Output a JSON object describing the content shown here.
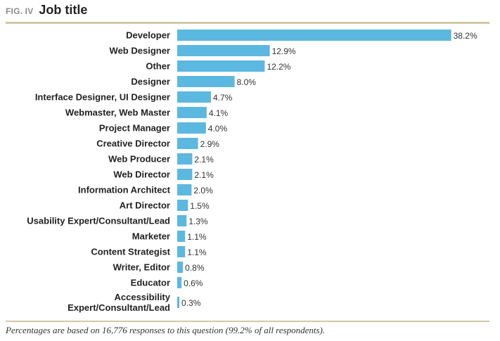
{
  "header": {
    "fig_label": "FIG. IV",
    "title": "Job title"
  },
  "colors": {
    "bar": "#5bb8e0",
    "rule": "#d2c9a3",
    "label": "#222222",
    "fig_label": "#8a8a8a"
  },
  "chart_data": {
    "type": "bar",
    "orientation": "horizontal",
    "title": "Job title",
    "xlabel": "",
    "ylabel": "",
    "grid": false,
    "value_suffix": "%",
    "categories": [
      "Developer",
      "Web Designer",
      "Other",
      "Designer",
      "Interface Designer, UI Designer",
      "Webmaster, Web Master",
      "Project Manager",
      "Creative Director",
      "Web Producer",
      "Web Director",
      "Information Architect",
      "Art Director",
      "Usability Expert/Consultant/Lead",
      "Marketer",
      "Content Strategist",
      "Writer, Editor",
      "Educator",
      "Accessibility Expert/Consultant/Lead"
    ],
    "values": [
      38.2,
      12.9,
      12.2,
      8.0,
      4.7,
      4.1,
      4.0,
      2.9,
      2.1,
      2.1,
      2.0,
      1.5,
      1.3,
      1.1,
      1.1,
      0.8,
      0.6,
      0.3
    ],
    "value_labels": [
      "38.2%",
      "12.9%",
      "12.2%",
      "8.0%",
      "4.7%",
      "4.1%",
      "4.0%",
      "2.9%",
      "2.1%",
      "2.1%",
      "2.0%",
      "1.5%",
      "1.3%",
      "1.1%",
      "1.1%",
      "0.8%",
      "0.6%",
      "0.3%"
    ],
    "xlim": [
      0,
      40
    ]
  },
  "footnote": "Percentages are based on 16,776 responses to this question (99.2% of all respondents)."
}
